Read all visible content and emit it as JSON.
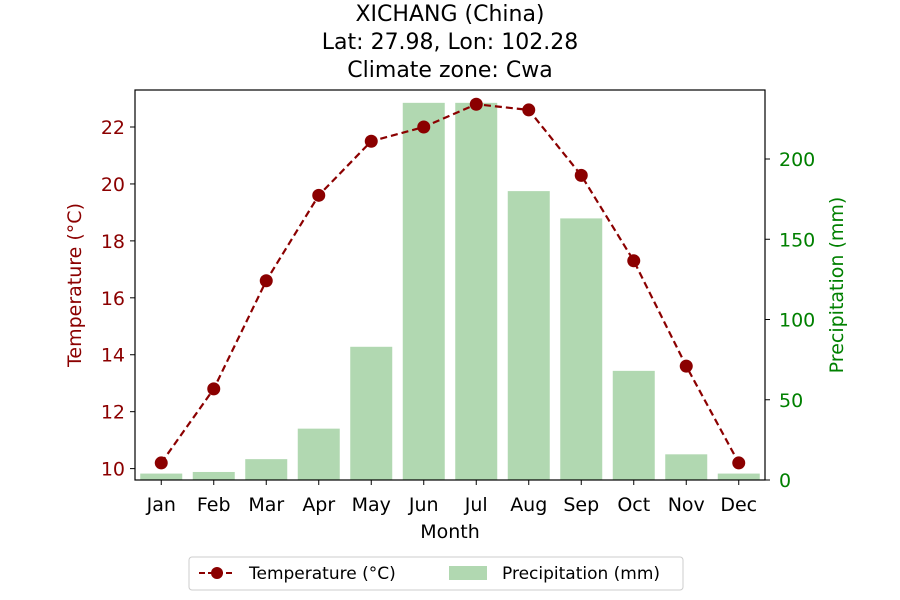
{
  "chart_data": {
    "type": "bar+line",
    "title_lines": [
      "XICHANG (China)",
      "Lat: 27.98, Lon: 102.28",
      "Climate zone: Cwa"
    ],
    "xlabel": "Month",
    "ylabel_left": "Temperature (°C)",
    "ylabel_right": "Precipitation (mm)",
    "categories": [
      "Jan",
      "Feb",
      "Mar",
      "Apr",
      "May",
      "Jun",
      "Jul",
      "Aug",
      "Sep",
      "Oct",
      "Nov",
      "Dec"
    ],
    "series": [
      {
        "name": "Temperature (°C)",
        "type": "line",
        "axis": "left",
        "color": "#8b0000",
        "style": "dashed",
        "marker": "circle",
        "values": [
          10.2,
          12.8,
          16.6,
          19.6,
          21.5,
          22.0,
          22.8,
          22.6,
          20.3,
          17.3,
          13.6,
          10.2
        ]
      },
      {
        "name": "Precipitation (mm)",
        "type": "bar",
        "axis": "right",
        "color": "#b1d8b1",
        "values": [
          4,
          5,
          13,
          32,
          83,
          235,
          235,
          180,
          163,
          68,
          16,
          4
        ]
      }
    ],
    "ylim_left": [
      9.6,
      23.3
    ],
    "yticks_left": [
      10,
      12,
      14,
      16,
      18,
      20,
      22
    ],
    "ylim_right": [
      0,
      243
    ],
    "yticks_right": [
      0,
      50,
      100,
      150,
      200
    ],
    "left_axis_color": "#8b0000",
    "right_axis_color": "#008000",
    "legend_position": "bottom-center",
    "grid": false
  }
}
